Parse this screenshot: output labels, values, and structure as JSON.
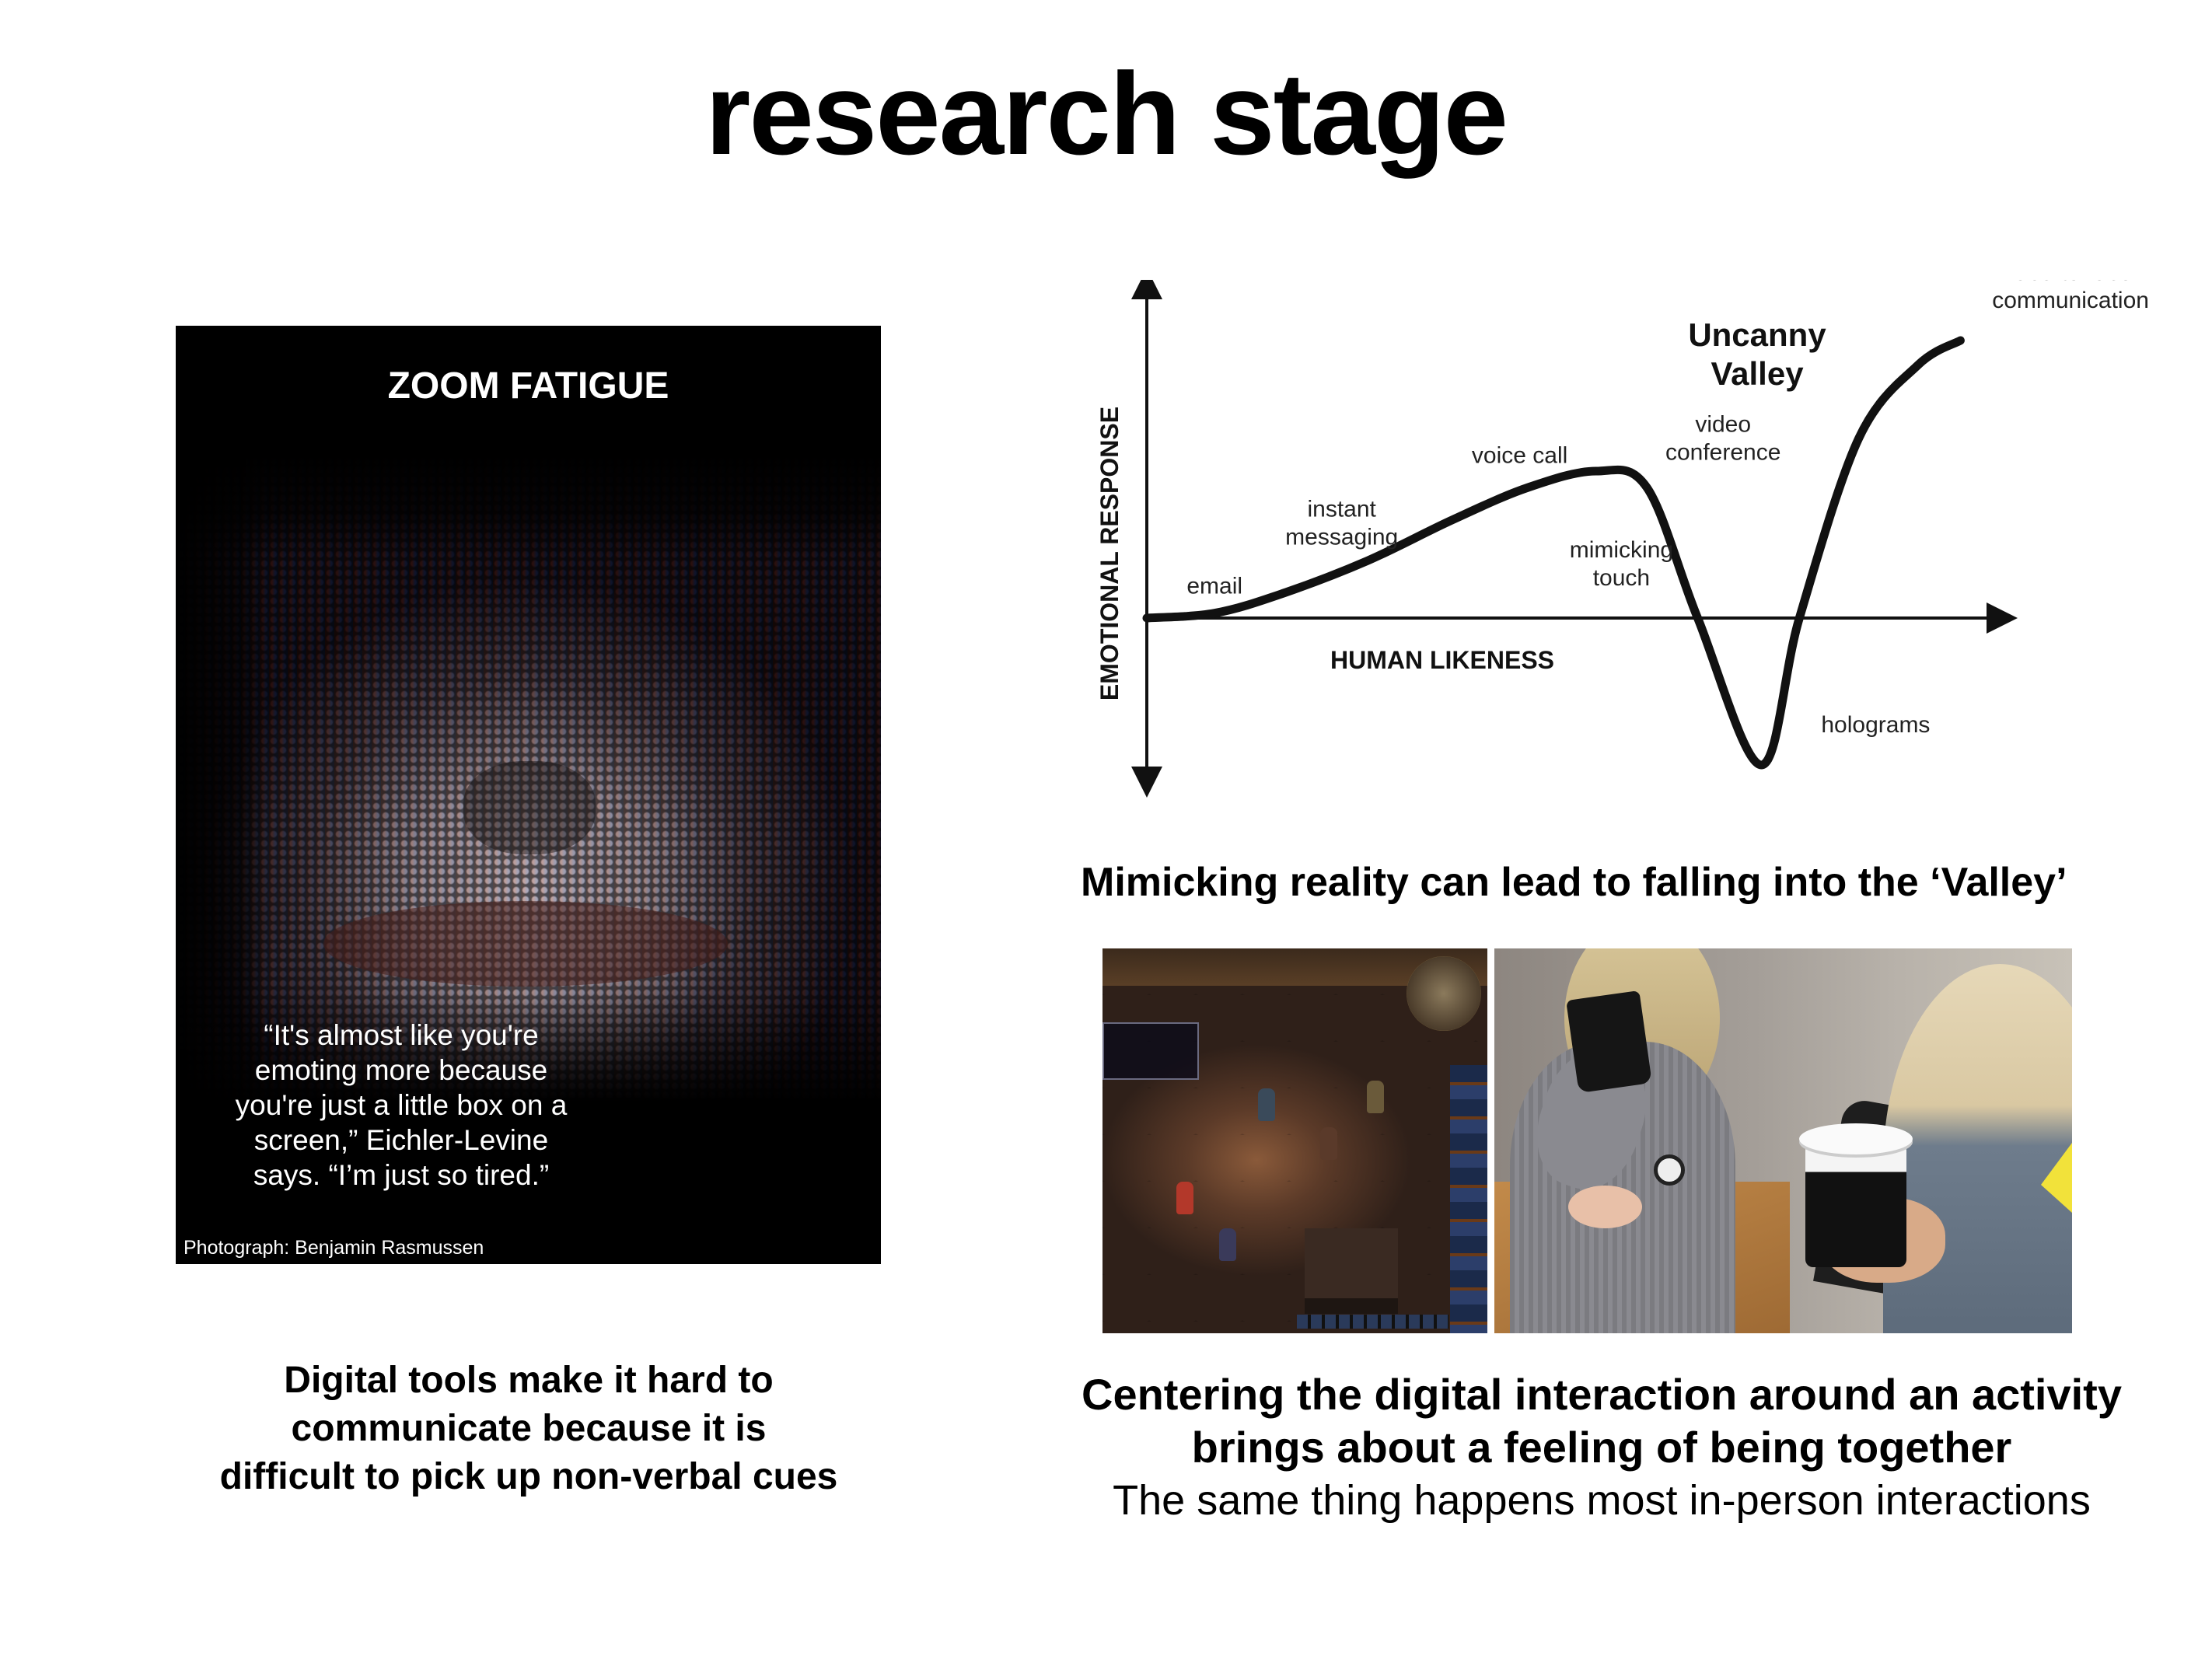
{
  "slide": {
    "title": "research stage"
  },
  "poster": {
    "title": "ZOOM FATIGUE",
    "quote_lines": [
      "“It's almost like you're",
      "emoting more because",
      "you're just a little box on a",
      "screen,” Eichler-Levine",
      "says. “I’m just so tired.”"
    ],
    "credit": "Photograph: Benjamin Rasmussen"
  },
  "left_caption": {
    "lines": [
      "Digital tools make it hard to",
      "communicate because it is",
      "difficult to pick up non-verbal cues"
    ]
  },
  "chart_data": {
    "type": "line",
    "title": "Uncanny Valley",
    "xlabel": "HUMAN LIKENESS",
    "ylabel": "EMOTIONAL RESPONSE",
    "xlim": [
      0,
      10
    ],
    "ylim": [
      -1,
      2
    ],
    "points": [
      {
        "x": 0,
        "y": 0
      },
      {
        "x": 0.8,
        "y": 0.03
      },
      {
        "x": 1.6,
        "y": 0.15
      },
      {
        "x": 2.6,
        "y": 0.35
      },
      {
        "x": 3.6,
        "y": 0.6
      },
      {
        "x": 4.5,
        "y": 0.8
      },
      {
        "x": 5.3,
        "y": 0.9
      },
      {
        "x": 5.9,
        "y": 0.8
      },
      {
        "x": 6.5,
        "y": 0
      },
      {
        "x": 7.25,
        "y": -0.9
      },
      {
        "x": 7.7,
        "y": 0
      },
      {
        "x": 8.4,
        "y": 1.1
      },
      {
        "x": 9.1,
        "y": 1.55
      },
      {
        "x": 9.6,
        "y": 1.7
      }
    ],
    "annotations": [
      {
        "text": [
          "email"
        ],
        "x": 0.8,
        "y": 0.15
      },
      {
        "text": [
          "instant",
          "messaging"
        ],
        "x": 2.3,
        "y": 0.45
      },
      {
        "text": [
          "voice call"
        ],
        "x": 4.4,
        "y": 0.95
      },
      {
        "text": [
          "video",
          "conference"
        ],
        "x": 6.8,
        "y": 0.97
      },
      {
        "text": [
          "mimicking",
          "touch"
        ],
        "x": 5.6,
        "y": 0.2
      },
      {
        "text": [
          "holograms"
        ],
        "x": 8.6,
        "y": -0.7
      },
      {
        "text": [
          "face-to-face",
          "communication"
        ],
        "x": 10.9,
        "y": 1.9
      }
    ],
    "valley_label": [
      "Uncanny",
      "Valley"
    ],
    "caption": "Mimicking reality can lead to falling into the ‘Valley’"
  },
  "right_caption": {
    "bold_lines": [
      "Centering the digital interaction around an activity",
      "brings about a feeling of being together"
    ],
    "normal_line": "The same thing happens most in-person interactions"
  },
  "images": {
    "game_icon": "game-screenshot",
    "coffee_icon": "coffee-meeting-photo"
  }
}
